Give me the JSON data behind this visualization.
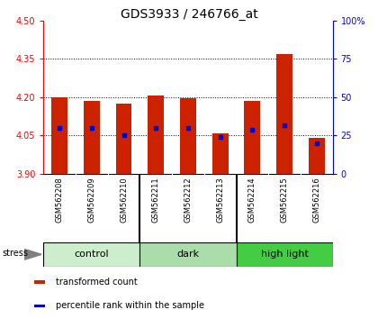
{
  "title": "GDS3933 / 246766_at",
  "samples": [
    "GSM562208",
    "GSM562209",
    "GSM562210",
    "GSM562211",
    "GSM562212",
    "GSM562213",
    "GSM562214",
    "GSM562215",
    "GSM562216"
  ],
  "transformed_counts": [
    4.201,
    4.186,
    4.176,
    4.208,
    4.197,
    4.06,
    4.186,
    4.368,
    4.042
  ],
  "percentile_ranks": [
    30,
    30,
    25,
    30,
    30,
    24,
    29,
    32,
    20
  ],
  "ylim_left": [
    3.9,
    4.5
  ],
  "ylim_right": [
    0,
    100
  ],
  "yticks_left": [
    3.9,
    4.05,
    4.2,
    4.35,
    4.5
  ],
  "yticks_right": [
    0,
    25,
    50,
    75,
    100
  ],
  "groups": [
    {
      "label": "control",
      "indices": [
        0,
        1,
        2
      ],
      "color": "#cceecc"
    },
    {
      "label": "dark",
      "indices": [
        3,
        4,
        5
      ],
      "color": "#aaddaa"
    },
    {
      "label": "high light",
      "indices": [
        6,
        7,
        8
      ],
      "color": "#44cc44"
    }
  ],
  "bar_color": "#cc2200",
  "dot_color": "#0000cc",
  "bar_width": 0.5,
  "bar_bottom": 3.9,
  "legend_items": [
    "transformed count",
    "percentile rank within the sample"
  ],
  "stress_label": "stress",
  "background_color": "#ffffff",
  "sample_area_color": "#cccccc",
  "title_fontsize": 10,
  "tick_fontsize": 7,
  "sample_fontsize": 6,
  "group_fontsize": 8,
  "legend_fontsize": 7
}
